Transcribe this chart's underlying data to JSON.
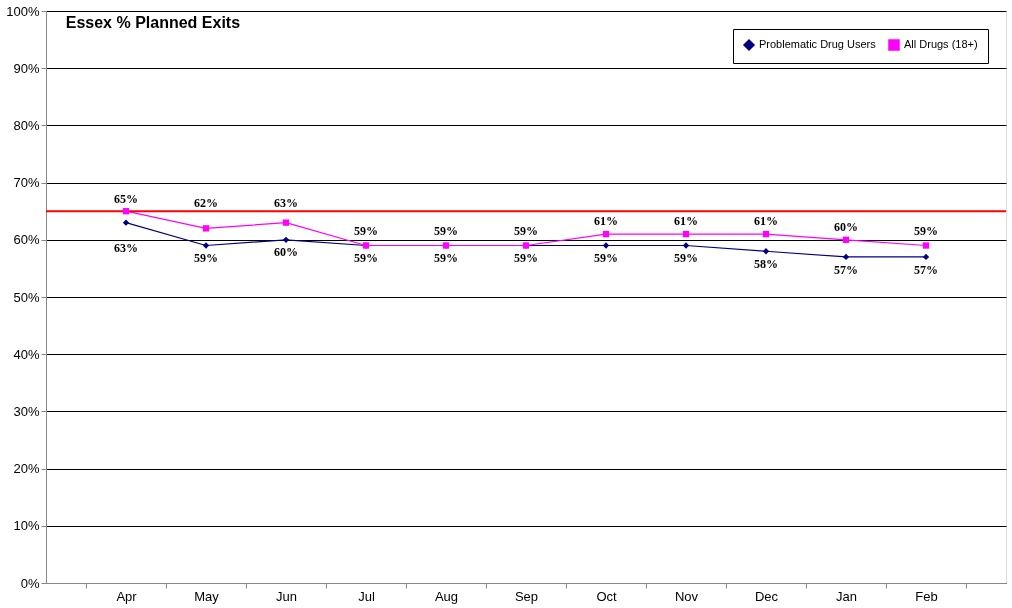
{
  "chart_data": {
    "type": "line",
    "title": "Essex % Planned Exits",
    "categories": [
      "Apr",
      "May",
      "Jun",
      "Jul",
      "Aug",
      "Sep",
      "Oct",
      "Nov",
      "Dec",
      "Jan",
      "Feb"
    ],
    "series": [
      {
        "name": "Problematic Drug Users",
        "color": "#000080",
        "marker": "diamond",
        "values": [
          63,
          59,
          60,
          59,
          59,
          59,
          59,
          59,
          58,
          57,
          57
        ],
        "value_labels": [
          "63%",
          "59%",
          "60%",
          "59%",
          "59%",
          "59%",
          "59%",
          "59%",
          "58%",
          "57%",
          "57%"
        ]
      },
      {
        "name": "All Drugs (18+)",
        "color": "#ff00ff",
        "marker": "square",
        "values": [
          65,
          62,
          63,
          59,
          59,
          59,
          61,
          61,
          61,
          60,
          59
        ],
        "value_labels": [
          "65%",
          "62%",
          "63%",
          "59%",
          "59%",
          "59%",
          "61%",
          "61%",
          "61%",
          "60%",
          "59%"
        ]
      }
    ],
    "ylim": [
      0,
      100
    ],
    "yticks": [
      {
        "value": 0,
        "label": "0%"
      },
      {
        "value": 10,
        "label": "10%"
      },
      {
        "value": 20,
        "label": "20%"
      },
      {
        "value": 30,
        "label": "30%"
      },
      {
        "value": 40,
        "label": "40%"
      },
      {
        "value": 50,
        "label": "50%"
      },
      {
        "value": 60,
        "label": "60%"
      },
      {
        "value": 70,
        "label": "70%"
      },
      {
        "value": 80,
        "label": "80%"
      },
      {
        "value": 90,
        "label": "90%"
      },
      {
        "value": 100,
        "label": "100%"
      }
    ],
    "ref_lines": [
      {
        "axis": "y",
        "value": 65,
        "color": "#ff0000"
      }
    ],
    "grid": "y",
    "legend": "top right",
    "line_style": "solid"
  }
}
